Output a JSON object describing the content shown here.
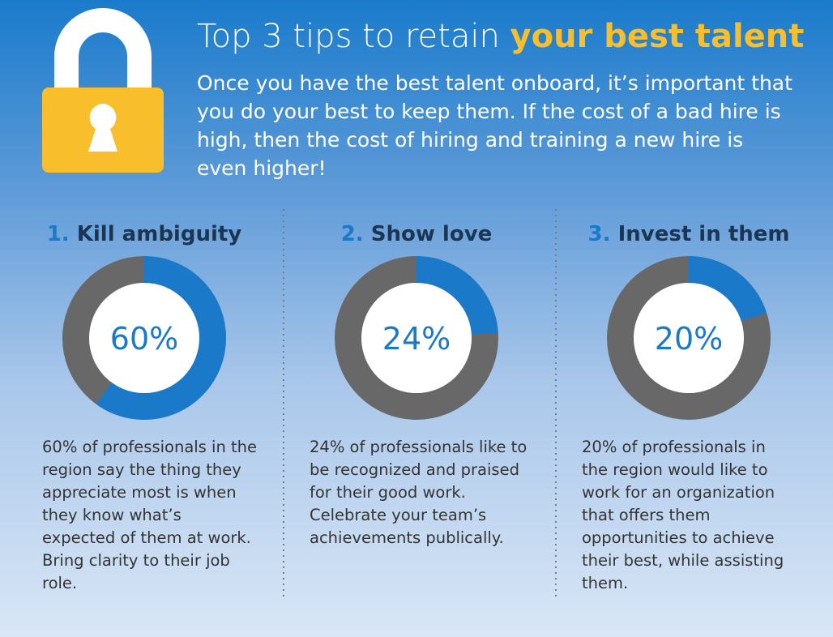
{
  "header": {
    "title_plain": "Top 3 tips to retain",
    "title_bold": "your best talent",
    "intro_lines": [
      "Once you have the best talent onboard, it’s important that",
      "you do your best to keep them. If the cost of a bad hire is",
      "high, then the cost of hiring and training a new hire is",
      "even higher!"
    ]
  },
  "chart_data": [
    {
      "type": "donut",
      "number": "1.",
      "title": "Kill ambiguity",
      "values": [
        60
      ],
      "value_labels": [
        "60%"
      ],
      "color": "#1a7ac9",
      "track_color": "#686868",
      "caption_lines": [
        "60% of professionals in the",
        "region say the thing they",
        "appreciate most is when",
        "they know what’s",
        "expected of them at work.",
        "Bring clarity to their job",
        "role."
      ]
    },
    {
      "type": "donut",
      "number": "2.",
      "title": "Show love",
      "values": [
        24
      ],
      "value_labels": [
        "24%"
      ],
      "color": "#1a7ac9",
      "track_color": "#686868",
      "caption_lines": [
        "24% of professionals like to",
        "be recognized and praised",
        "for their good work.",
        "Celebrate your team’s",
        "achievements publically."
      ]
    },
    {
      "type": "donut",
      "number": "3.",
      "title": "Invest in them",
      "values": [
        20
      ],
      "value_labels": [
        "20%"
      ],
      "color": "#1a7ac9",
      "track_color": "#686868",
      "caption_lines": [
        "20% of professionals in",
        "the region would like to",
        "work for an organization",
        "that offers them",
        "opportunities to achieve",
        "their best, while assisting",
        "them."
      ]
    }
  ]
}
